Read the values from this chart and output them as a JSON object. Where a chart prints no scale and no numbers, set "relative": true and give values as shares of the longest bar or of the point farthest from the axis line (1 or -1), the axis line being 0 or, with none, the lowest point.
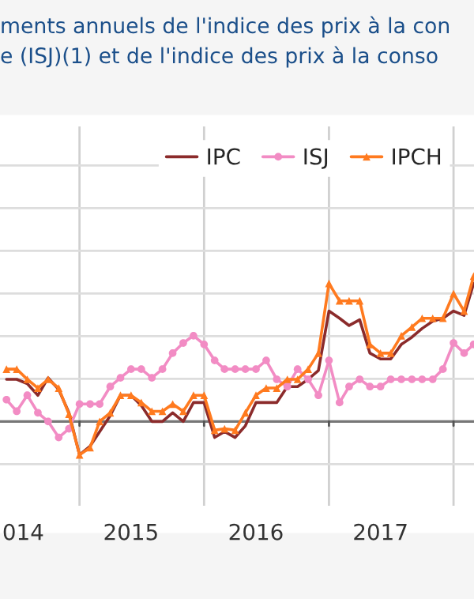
{
  "chart_data": {
    "type": "line",
    "title": "ments annuels de l'indice des prix à la con",
    "subtitle": "e (ISJ)(1) et de l'indice des prix à la conso",
    "relative": true,
    "grid": true,
    "legend": "top right",
    "tick_labels": "x",
    "x": [
      "2014-06",
      "2014-07",
      "2014-08",
      "2014-09",
      "2014-10",
      "2014-11",
      "2014-12",
      "2015-01",
      "2015-02",
      "2015-03",
      "2015-04",
      "2015-05",
      "2015-06",
      "2015-07",
      "2015-08",
      "2015-09",
      "2015-10",
      "2015-11",
      "2015-12",
      "2016-01",
      "2016-02",
      "2016-03",
      "2016-04",
      "2016-05",
      "2016-06",
      "2016-07",
      "2016-08",
      "2016-09",
      "2016-10",
      "2016-11",
      "2016-12",
      "2017-01",
      "2017-02",
      "2017-03",
      "2017-04",
      "2017-05",
      "2017-06",
      "2017-07",
      "2017-08",
      "2017-09",
      "2017-10",
      "2017-11",
      "2017-12",
      "2018-01",
      "2018-02",
      "2018-03"
    ],
    "xlim": [
      "2014-05-13",
      "2018-03-02"
    ],
    "xticks": [
      {
        "value": "2014-07-20",
        "label": "014"
      },
      {
        "value": "2015-01-01",
        "label": null
      },
      {
        "value": "2015-06-01",
        "label": "2015"
      },
      {
        "value": "2016-01-01",
        "label": null
      },
      {
        "value": "2016-06-01",
        "label": "2016"
      },
      {
        "value": "2017-01-01",
        "label": null
      },
      {
        "value": "2017-06-01",
        "label": "2017"
      },
      {
        "value": "2018-01-01",
        "label": null
      }
    ],
    "series": [
      {
        "name": "IPC",
        "color": "#8b2b2b",
        "marker": "none",
        "values": [
          0.29,
          0.29,
          0.26,
          0.18,
          0.3,
          0.22,
          0.06,
          -0.23,
          -0.17,
          -0.07,
          0.04,
          0.18,
          0.18,
          0.11,
          0.0,
          0.0,
          0.06,
          0.0,
          0.13,
          0.13,
          -0.11,
          -0.07,
          -0.11,
          -0.03,
          0.13,
          0.13,
          0.13,
          0.24,
          0.24,
          0.29,
          0.35,
          0.76,
          0.71,
          0.66,
          0.7,
          0.47,
          0.43,
          0.43,
          0.53,
          0.58,
          0.64,
          0.69,
          0.71,
          0.76,
          0.73,
          0.95
        ]
      },
      {
        "name": "ISJ",
        "color": "#f28cc4",
        "marker": "circle",
        "values": [
          0.15,
          0.07,
          0.18,
          0.06,
          0.0,
          -0.11,
          -0.05,
          0.12,
          0.12,
          0.12,
          0.24,
          0.3,
          0.36,
          0.36,
          0.3,
          0.36,
          0.47,
          0.54,
          0.59,
          0.53,
          0.42,
          0.36,
          0.36,
          0.36,
          0.36,
          0.42,
          0.29,
          0.24,
          0.36,
          0.29,
          0.18,
          0.42,
          0.13,
          0.24,
          0.29,
          0.24,
          0.24,
          0.29,
          0.29,
          0.29,
          0.29,
          0.29,
          0.36,
          0.54,
          0.47,
          0.53
        ]
      },
      {
        "name": "IPCH",
        "color": "#ff7a1f",
        "marker": "triangle",
        "values": [
          0.36,
          0.36,
          0.29,
          0.23,
          0.29,
          0.23,
          0.05,
          -0.23,
          -0.18,
          0.0,
          0.06,
          0.18,
          0.18,
          0.13,
          0.07,
          0.07,
          0.12,
          0.07,
          0.18,
          0.18,
          -0.06,
          -0.05,
          -0.06,
          0.06,
          0.18,
          0.23,
          0.23,
          0.29,
          0.29,
          0.36,
          0.47,
          0.95,
          0.83,
          0.83,
          0.83,
          0.53,
          0.47,
          0.47,
          0.59,
          0.65,
          0.71,
          0.71,
          0.71,
          0.88,
          0.76,
          1.0
        ]
      }
    ]
  }
}
